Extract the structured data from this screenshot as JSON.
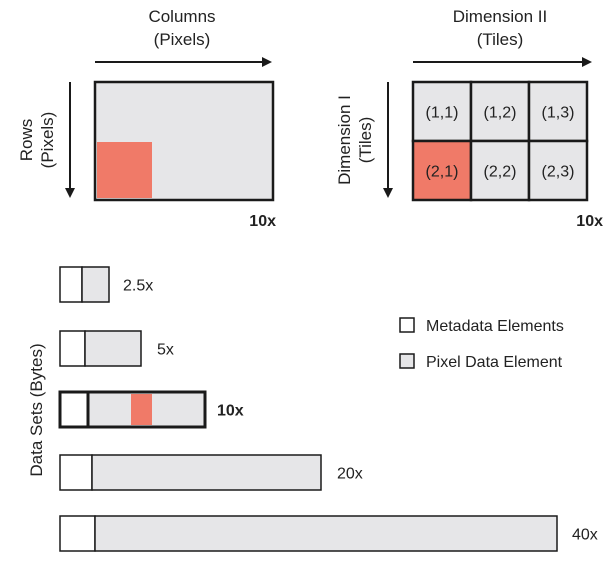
{
  "colors": {
    "outline": "#1a1a1a",
    "pixel_fill": "#e6e6e8",
    "metadata_fill": "#ffffff",
    "highlight": "#f07a68",
    "text": "#222222"
  },
  "left_panel": {
    "x_axis_title_line1": "Columns",
    "x_axis_title_line2": "(Pixels)",
    "y_axis_title_line1": "Rows",
    "y_axis_title_line2": "(Pixels)",
    "magnification": "10x"
  },
  "right_panel": {
    "x_axis_title_line1": "Dimension II",
    "x_axis_title_line2": "(Tiles)",
    "y_axis_title_line1": "Dimension I",
    "y_axis_title_line2": "(Tiles)",
    "magnification": "10x",
    "tiles": [
      {
        "label": "(1,1)",
        "highlighted": false
      },
      {
        "label": "(1,2)",
        "highlighted": false
      },
      {
        "label": "(1,3)",
        "highlighted": false
      },
      {
        "label": "(2,1)",
        "highlighted": true
      },
      {
        "label": "(2,2)",
        "highlighted": false
      },
      {
        "label": "(2,3)",
        "highlighted": false
      }
    ]
  },
  "datasets": {
    "axis_title": "Data Sets (Bytes)",
    "bars": [
      {
        "label": "2.5x",
        "bold": false
      },
      {
        "label": "5x",
        "bold": false
      },
      {
        "label": "10x",
        "bold": true
      },
      {
        "label": "20x",
        "bold": false
      },
      {
        "label": "40x",
        "bold": false
      }
    ]
  },
  "legend": {
    "metadata_label": "Metadata Elements",
    "pixel_label": "Pixel Data Element"
  }
}
